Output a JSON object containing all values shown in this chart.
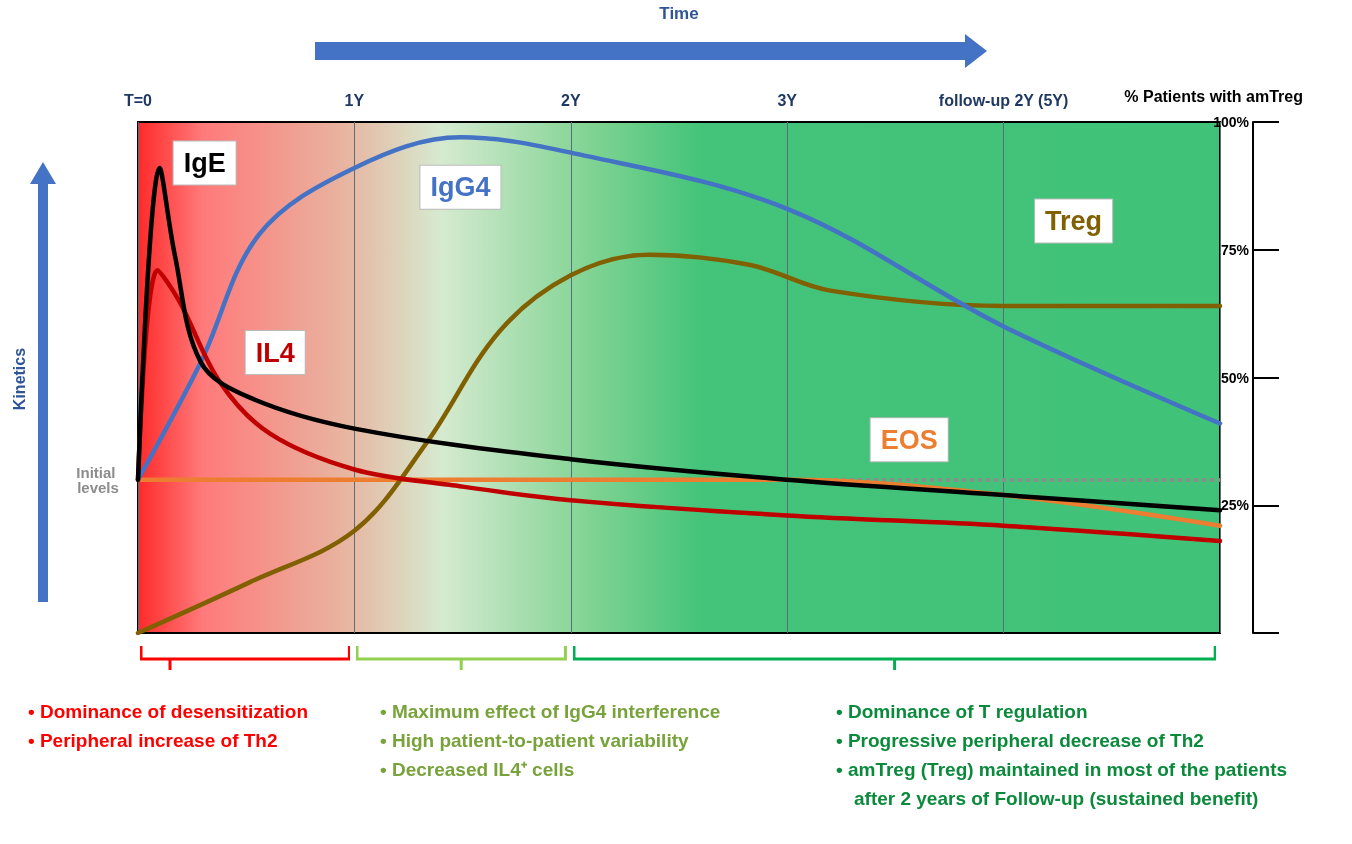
{
  "chart_data": {
    "type": "line",
    "xlabel": "Time",
    "y2label": "% Patients with amTreg",
    "xlim": [
      0,
      5
    ],
    "xticks": [
      {
        "value": 0,
        "label": "T=0"
      },
      {
        "value": 1,
        "label": "1Y"
      },
      {
        "value": 2,
        "label": "2Y"
      },
      {
        "value": 3,
        "label": "3Y"
      },
      {
        "value": 4,
        "label": "follow-up 2Y (5Y)"
      }
    ],
    "y2lim": [
      0,
      100
    ],
    "y2ticks": [
      {
        "value": 0,
        "label": null
      },
      {
        "value": 25,
        "label": "25%"
      },
      {
        "value": 50,
        "label": "50%"
      },
      {
        "value": 75,
        "label": "75%"
      },
      {
        "value": 100,
        "label": "100%"
      }
    ],
    "series": [
      {
        "name": "IgE",
        "color": "#000000",
        "axis": "y2",
        "x": [
          0,
          0.1,
          0.17,
          0.29,
          0.52,
          1,
          2,
          3,
          4,
          5
        ],
        "values": [
          30,
          91,
          74,
          53,
          46,
          40,
          34,
          30,
          27,
          24
        ]
      },
      {
        "name": "IL4",
        "color": "#c00000",
        "axis": "y2",
        "x": [
          0,
          0.09,
          0.19,
          0.38,
          0.61,
          1,
          1.44,
          2,
          3,
          4,
          5
        ],
        "values": [
          30,
          71,
          65,
          49,
          39,
          32,
          29,
          26,
          23,
          21,
          18
        ]
      },
      {
        "name": "IgG4",
        "color": "#4472c4",
        "axis": "y2",
        "x": [
          0,
          0.29,
          0.56,
          1,
          1.49,
          2,
          3,
          4,
          5
        ],
        "values": [
          30,
          53,
          78,
          91,
          97,
          94,
          83,
          60,
          41
        ]
      },
      {
        "name": "Treg",
        "color": "#806000",
        "axis": "y2",
        "x": [
          0,
          0.52,
          1,
          1.33,
          1.67,
          2,
          2.36,
          2.83,
          3.2,
          4,
          5
        ],
        "values": [
          0,
          10,
          20,
          37,
          59,
          70,
          74,
          72,
          67,
          64,
          64
        ]
      },
      {
        "name": "EOS",
        "color": "#ed7d31",
        "axis": "y2",
        "x": [
          0,
          1,
          2,
          3,
          4,
          5
        ],
        "values": [
          30,
          30,
          30,
          30,
          27,
          21
        ]
      }
    ],
    "ref_lines": [
      {
        "axis": "y2",
        "value": 30,
        "label": "Initial levels",
        "color": "#8c8c8c",
        "line_style": "dotted"
      }
    ],
    "annotations": [
      "• Dominance of desensitization",
      "• Peripheral increase of Th2",
      "• Maximum effect of IgG4 interference",
      "• High patient-to-patient variability",
      "• Decreased IL4⁺ cells",
      "• Dominance of T regulation",
      "• Progressive peripheral decrease of Th2",
      "• amTreg (Treg) maintained in most of the patients after 2 years of Follow-up (sustained benefit)",
      "Kinetics"
    ],
    "grid": "x",
    "legend": false,
    "marker": "none",
    "line_style": "solid"
  }
}
